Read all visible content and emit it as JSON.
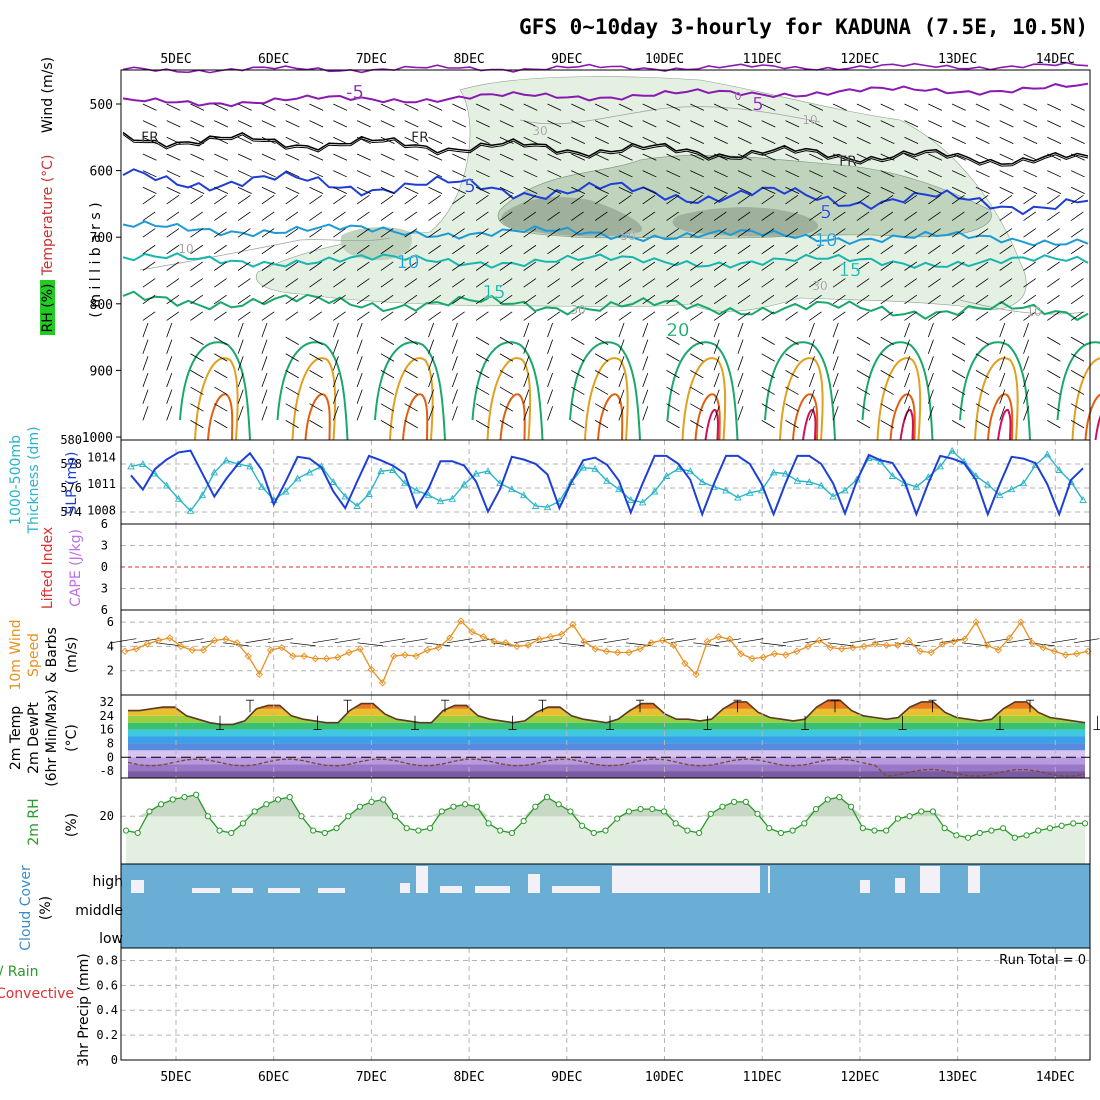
{
  "title": "GFS 0~10day 3-hourly for KADUNA (7.5E, 10.5N)",
  "day_labels": [
    "5DEC",
    "6DEC",
    "7DEC",
    "8DEC",
    "9DEC",
    "10DEC",
    "11DEC",
    "12DEC",
    "13DEC",
    "14DEC"
  ],
  "colors": {
    "grid": "#b4b4b4",
    "rh_light": "#e4f0e2",
    "rh_mid": "#bfd3bd",
    "rh_dark": "#9fb09d",
    "iso_m5": "#8a1ab0",
    "iso_fr": "#000000",
    "iso_5": "#1e3fd6",
    "iso_10": "#1e9ad6",
    "iso_15": "#19b5b0",
    "iso_20": "#19a86a",
    "iso_25": "#e0a020",
    "iso_30": "#e06010",
    "iso_35": "#d0105a",
    "slp": "#1e3fd6",
    "thickness": "#2ab4c8",
    "wind10": "#e89020",
    "rh2m": "#2a9a2a",
    "rh2m_fill": "#e3efe0",
    "cloud": "#6aaed6",
    "cloud_gap": "#f4f0f8",
    "dewpt": "#7a4a30"
  },
  "panels": {
    "upper": {
      "ylabel_lines": [
        "Wind (m/s)",
        "Temperature (°C)",
        "RH (%)",
        "( m i l l i b a r s )"
      ],
      "y_ticks": [
        "500",
        "600",
        "700",
        "800",
        "900",
        "1000"
      ],
      "contour_labels": [
        "-5",
        "0",
        "5",
        "FR",
        "FR",
        "FR",
        "5",
        "5",
        "10",
        "10",
        "15",
        "15",
        "20",
        "10",
        "10",
        "30",
        "30",
        "30",
        "50",
        "10"
      ]
    },
    "slp": {
      "ylabel_lines": [
        "1000-500mb",
        "Thickness (dm)",
        "SLP (mb)"
      ],
      "left_ticks": [
        "580",
        "578",
        "576",
        "574"
      ],
      "right_ticks": [
        "1014",
        "1011",
        "1008"
      ]
    },
    "cape": {
      "ylabel_lines": [
        "Lifted Index",
        "CAPE (J/kg)"
      ],
      "ticks": [
        "-6",
        "-3",
        "0",
        "3",
        "6"
      ]
    },
    "wind10": {
      "ylabel_lines": [
        "10m Wind",
        "Speed",
        "& Barbs",
        "(m/s)"
      ],
      "ticks": [
        "6",
        "4",
        "2"
      ]
    },
    "temp": {
      "ylabel_lines": [
        "2m Temp",
        "2m DewPt",
        "(6hr Min/Max)",
        "(°C)"
      ],
      "ticks": [
        "32",
        "24",
        "16",
        "8",
        "0",
        "-8"
      ]
    },
    "rh2m": {
      "ylabel_lines": [
        "2m RH",
        "(%)"
      ],
      "ticks": [
        "20"
      ]
    },
    "cloud": {
      "ylabel_lines": [
        "Cloud Cover",
        "(%)"
      ],
      "levels": [
        "high",
        "middle",
        "low"
      ]
    },
    "precip": {
      "ylabel_lines": [
        "Total / Rain",
        "Convective",
        "3hr Precip (mm)"
      ],
      "ticks": [
        "0.8",
        "0.6",
        "0.4",
        "0.2",
        "0"
      ],
      "run_total": "Run Total = 0"
    }
  },
  "chart_data": [
    {
      "type": "line",
      "title": "SLP (mb) / 1000-500mb Thickness (dm)",
      "x": "3-hourly steps from 4DEC 12Z to 14DEC 09Z",
      "series": [
        {
          "name": "SLP (mb)",
          "values": [
            1012.0,
            1010.4,
            1012.7,
            1013.8,
            1014.6,
            1014.8,
            1012.2,
            1009.6,
            1011.6,
            1013.3,
            1014.5,
            1012.6,
            1008.7,
            1011.3,
            1014.1,
            1013.9,
            1012.9,
            1010.2,
            1008.3,
            1011.3,
            1014.2,
            1013.7,
            1013.1,
            1012.2,
            1008.4,
            1010.5,
            1013.6,
            1013.6,
            1013.1,
            1011.3,
            1007.9,
            1010.4,
            1014.1,
            1013.8,
            1013.3,
            1012.1,
            1008.3,
            1011.2,
            1013.7,
            1014.0,
            1013.2,
            1011.4,
            1007.8,
            1011.1,
            1014.2,
            1014.2,
            1013.3,
            1011.5,
            1007.6,
            1011.1,
            1014.2,
            1014.2,
            1013.3,
            1011.0,
            1007.6,
            1011.1,
            1014.2,
            1014.2,
            1013.3,
            1011.1,
            1007.7,
            1011.4,
            1014.3,
            1013.7,
            1013.4,
            1011.3,
            1007.6,
            1011.1,
            1014.2,
            1013.9,
            1013.4,
            1011.5,
            1007.6,
            1011.0,
            1014.1,
            1013.9,
            1013.4,
            1011.0,
            1007.6,
            1011.5,
            1012.8
          ]
        },
        {
          "name": "1000-500mb Thickness (dm)",
          "values": [
            577.8,
            578.0,
            577.2,
            576.2,
            575.1,
            574.1,
            575.4,
            577.3,
            578.3,
            578.0,
            577.8,
            576.1,
            575.0,
            575.7,
            576.8,
            577.3,
            577.8,
            576.5,
            575.3,
            574.5,
            575.5,
            577.4,
            577.5,
            576.4,
            575.8,
            575.4,
            574.9,
            575.1,
            576.3,
            577.2,
            577.4,
            576.4,
            575.9,
            575.4,
            574.5,
            574.4,
            574.9,
            576.5,
            577.7,
            577.6,
            576.6,
            575.9,
            575.0,
            574.8,
            575.7,
            577.0,
            577.6,
            577.4,
            576.5,
            576.1,
            575.8,
            575.2,
            575.6,
            575.8,
            577.3,
            577.2,
            576.6,
            576.5,
            576.2,
            575.3,
            575.8,
            576.7,
            578.5,
            578.2,
            577.0,
            576.4,
            576.1,
            576.9,
            577.8,
            579.1,
            578.2,
            577.0,
            576.3,
            575.4,
            575.9,
            576.4,
            577.9,
            578.8,
            577.5,
            576.5,
            575.0
          ]
        }
      ],
      "ylim_left": [
        573,
        580
      ],
      "ylim_right": [
        1006.5,
        1016
      ]
    },
    {
      "type": "line",
      "title": "10m Wind Speed (m/s)",
      "series": [
        {
          "name": "10m Wind Speed",
          "values": [
            3.6,
            3.8,
            4.2,
            4.5,
            4.7,
            4.0,
            3.7,
            3.7,
            4.5,
            4.6,
            4.3,
            3.2,
            1.7,
            3.7,
            3.9,
            3.2,
            3.2,
            3.0,
            3.0,
            3.1,
            3.5,
            3.8,
            2.1,
            1.0,
            3.2,
            3.3,
            3.2,
            3.7,
            3.9,
            4.7,
            6.1,
            5.2,
            4.8,
            4.4,
            4.3,
            4.0,
            4.1,
            4.6,
            4.8,
            5.0,
            5.8,
            4.4,
            3.8,
            3.6,
            3.5,
            3.5,
            3.8,
            4.3,
            4.5,
            4.1,
            2.6,
            1.7,
            4.4,
            4.8,
            4.6,
            3.4,
            3.0,
            3.1,
            3.4,
            3.3,
            3.6,
            4.0,
            4.5,
            3.9,
            3.8,
            3.9,
            4.0,
            4.2,
            4.1,
            4.1,
            4.5,
            3.6,
            3.5,
            4.2,
            4.4,
            4.6,
            6.0,
            4.1,
            3.7,
            4.7,
            6.0,
            4.3,
            3.9,
            3.6,
            3.3,
            3.4,
            3.6
          ]
        }
      ],
      "ylim": [
        0,
        7
      ]
    },
    {
      "type": "area",
      "title": "2m Temp (°C)",
      "series": [
        {
          "name": "2m Temp",
          "values": [
            27,
            27,
            28,
            29,
            29,
            24,
            22,
            20,
            19,
            19,
            21,
            28,
            30,
            30,
            24,
            22,
            21,
            20,
            20,
            27,
            31,
            31,
            25,
            22,
            21,
            20,
            20,
            27,
            30,
            30,
            24,
            22,
            21,
            20,
            21,
            26,
            29,
            29,
            24,
            22,
            21,
            20,
            22,
            27,
            31,
            31,
            25,
            22,
            22,
            21,
            22,
            28,
            32,
            32,
            26,
            23,
            22,
            21,
            22,
            29,
            33,
            33,
            27,
            24,
            23,
            22,
            23,
            29,
            32,
            32,
            26,
            23,
            22,
            21,
            22,
            28,
            32,
            32,
            26,
            23,
            22,
            21,
            20
          ]
        }
      ],
      "ylim": [
        -12,
        36
      ]
    },
    {
      "type": "area",
      "title": "2m RH (%)",
      "series": [
        {
          "name": "2m RH",
          "values": [
            14,
            13,
            22,
            25,
            27,
            28,
            29,
            20,
            14,
            13,
            17,
            22,
            25,
            27,
            28,
            20,
            14,
            13,
            15,
            20,
            24,
            26,
            27,
            20,
            15,
            14,
            15,
            22,
            24,
            25,
            24,
            17,
            14,
            13,
            18,
            24,
            28,
            25,
            22,
            16,
            13,
            14,
            19,
            22,
            23,
            23,
            22,
            17,
            14,
            13,
            21,
            24,
            26,
            26,
            21,
            15,
            13,
            14,
            17,
            23,
            27,
            28,
            24,
            15,
            14,
            14,
            19,
            20,
            22,
            22,
            15,
            12,
            11,
            13,
            14,
            15,
            11,
            12,
            14,
            15,
            16,
            17,
            17
          ]
        }
      ],
      "ylim": [
        0,
        36
      ]
    },
    {
      "type": "bar",
      "title": "3hr Precip (mm)",
      "series": [
        {
          "name": "Total / Rain",
          "values": [
            0
          ]
        },
        {
          "name": "Convective",
          "values": [
            0
          ]
        }
      ],
      "ylim": [
        0,
        0.9
      ]
    }
  ]
}
